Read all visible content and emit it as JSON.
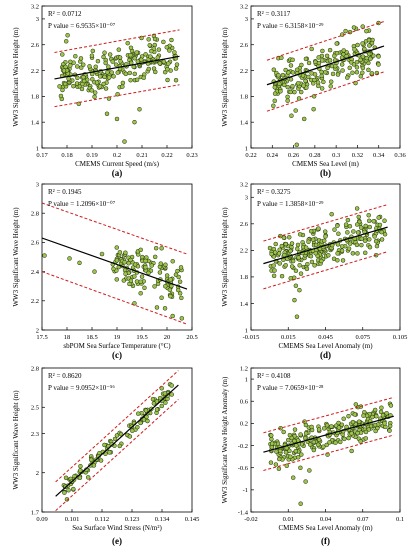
{
  "chart_data": [
    {
      "type": "scatter",
      "panel_label": "(a)",
      "xlabel": "CMEMS Current Speed (m/s)",
      "ylabel": "WW3 Significant Wave Height (m)",
      "xlim": [
        0.17,
        0.23
      ],
      "ylim": [
        1.0,
        3.2
      ],
      "x_ticks": [
        "0.17",
        "0.18",
        "0.19",
        "0.2",
        "0.21",
        "0.22",
        "0.23"
      ],
      "y_ticks": [
        "1",
        "1.4",
        "1.8",
        "2.2",
        "2.6",
        "3",
        "3.2"
      ],
      "x_tick_values": [
        0.17,
        0.18,
        0.19,
        0.2,
        0.21,
        0.22,
        0.23
      ],
      "y_tick_values": [
        1.0,
        1.4,
        1.8,
        2.2,
        2.6,
        3.0,
        3.2
      ],
      "r2_text": "R² = 0.0712",
      "p_text": "P value = 6.9535×10⁻⁰⁷",
      "fit": {
        "x": [
          0.175,
          0.225
        ],
        "y": [
          2.07,
          2.42
        ]
      },
      "ci_upper": {
        "x": [
          0.175,
          0.225
        ],
        "y": [
          2.48,
          2.83
        ]
      },
      "ci_lower": {
        "x": [
          0.175,
          0.225
        ],
        "y": [
          1.64,
          1.98
        ]
      },
      "points": {
        "n": 240,
        "x_range": [
          0.177,
          0.224
        ],
        "spread": 0.18,
        "seed": 11,
        "outliers": [
          [
            0.203,
            1.1
          ],
          [
            0.2,
            1.45
          ],
          [
            0.196,
            1.53
          ],
          [
            0.207,
            1.4
          ],
          [
            0.209,
            1.6
          ]
        ]
      }
    },
    {
      "type": "scatter",
      "panel_label": "(b)",
      "xlabel": "CMEMS Sea Level (m)",
      "ylabel": "WW3 Significant Wave Height (m)",
      "xlim": [
        0.22,
        0.36
      ],
      "ylim": [
        1.0,
        3.2
      ],
      "x_ticks": [
        "0.22",
        "0.24",
        "0.26",
        "0.28",
        "0.3",
        "0.32",
        "0.34",
        "0.36"
      ],
      "y_ticks": [
        "1",
        "1.4",
        "1.8",
        "2.2",
        "2.6",
        "3",
        "3.2"
      ],
      "x_tick_values": [
        0.22,
        0.24,
        0.26,
        0.28,
        0.3,
        0.32,
        0.34,
        0.36
      ],
      "y_tick_values": [
        1.0,
        1.4,
        1.8,
        2.2,
        2.6,
        3.0,
        3.2
      ],
      "r2_text": "R² = 0.3117",
      "p_text": "P value = 6.3158×10⁻²⁹",
      "fit": {
        "x": [
          0.235,
          0.345
        ],
        "y": [
          1.98,
          2.58
        ]
      },
      "ci_upper": {
        "x": [
          0.235,
          0.345
        ],
        "y": [
          2.36,
          2.96
        ]
      },
      "ci_lower": {
        "x": [
          0.235,
          0.345
        ],
        "y": [
          1.57,
          2.18
        ]
      },
      "points": {
        "n": 230,
        "x_range": [
          0.24,
          0.34
        ],
        "spread": 0.17,
        "seed": 23,
        "outliers": [
          [
            0.263,
            1.05
          ],
          [
            0.258,
            1.5
          ],
          [
            0.27,
            1.45
          ],
          [
            0.262,
            1.58
          ]
        ]
      }
    },
    {
      "type": "scatter",
      "panel_label": "(c)",
      "xlabel": "sbPOM Sea Surface Temperature (°C)",
      "ylabel": "WW3 Significant Wave Height (m)",
      "xlim": [
        17.5,
        20.5
      ],
      "ylim": [
        2.0,
        3.0
      ],
      "x_ticks": [
        "17.5",
        "18",
        "18.5",
        "19",
        "19.5",
        "20",
        "20.5"
      ],
      "y_ticks": [
        "2",
        "2.2",
        "2.4",
        "2.6",
        "2.8",
        "3"
      ],
      "x_tick_values": [
        17.5,
        18,
        18.5,
        19,
        19.5,
        20,
        20.5
      ],
      "y_tick_values": [
        2.0,
        2.2,
        2.4,
        2.6,
        2.8,
        3.0
      ],
      "r2_text": "R² = 0.1945",
      "p_text": "P value = 1.2096×10⁻⁰⁷",
      "fit": {
        "x": [
          17.5,
          20.4
        ],
        "y": [
          2.63,
          2.28
        ]
      },
      "ci_upper": {
        "x": [
          17.5,
          20.4
        ],
        "y": [
          2.87,
          2.52
        ]
      },
      "ci_lower": {
        "x": [
          17.5,
          20.4
        ],
        "y": [
          2.4,
          2.04
        ]
      },
      "points": {
        "n": 130,
        "x_range": [
          18.9,
          20.3
        ],
        "spread": 0.09,
        "seed": 37,
        "outliers": [
          [
            17.55,
            2.51
          ],
          [
            18.05,
            2.49
          ],
          [
            18.25,
            2.46
          ],
          [
            18.55,
            2.4
          ],
          [
            18.7,
            2.52
          ]
        ]
      }
    },
    {
      "type": "scatter",
      "panel_label": "(d)",
      "xlabel": "CMEMS Sea Level Anomaly (m)",
      "ylabel": "WW3 Significant Wave Height (m)",
      "xlim": [
        -0.015,
        0.105
      ],
      "ylim": [
        1.0,
        3.2
      ],
      "x_ticks": [
        "-0.015",
        "0.015",
        "0.045",
        "0.075",
        "0.105"
      ],
      "y_ticks": [
        "1",
        "1.4",
        "1.8",
        "2.2",
        "2.6",
        "3",
        "3.2"
      ],
      "x_tick_values": [
        -0.015,
        0.015,
        0.045,
        0.075,
        0.105
      ],
      "y_tick_values": [
        1.0,
        1.4,
        1.8,
        2.2,
        2.6,
        3.0,
        3.2
      ],
      "r2_text": "R² = 0.3275",
      "p_text": "P value = 1.3858×10⁻²⁹",
      "fit": {
        "x": [
          -0.005,
          0.095
        ],
        "y": [
          2.0,
          2.55
        ]
      },
      "ci_upper": {
        "x": [
          -0.005,
          0.095
        ],
        "y": [
          2.34,
          2.89
        ]
      },
      "ci_lower": {
        "x": [
          -0.005,
          0.095
        ],
        "y": [
          1.62,
          2.18
        ]
      },
      "points": {
        "n": 250,
        "x_range": [
          0.0,
          0.093
        ],
        "spread": 0.15,
        "seed": 51,
        "outliers": [
          [
            0.022,
            1.2
          ],
          [
            0.02,
            1.45
          ],
          [
            0.024,
            1.6
          ],
          [
            0.017,
            1.78
          ]
        ]
      }
    },
    {
      "type": "scatter",
      "panel_label": "(e)",
      "xlabel": "Sea Surface Wind Stress (N/m²)",
      "ylabel": "WW3 Significant Wave Height (m)",
      "xlim": [
        0.09,
        0.145
      ],
      "ylim": [
        1.7,
        2.8
      ],
      "x_ticks": [
        "0.09",
        "0.101",
        "0.112",
        "0.123",
        "0.134",
        "0.145"
      ],
      "y_ticks": [
        "1.7",
        "2",
        "2.3",
        "2.5",
        "2.8"
      ],
      "x_tick_values": [
        0.09,
        0.101,
        0.112,
        0.123,
        0.134,
        0.145
      ],
      "y_tick_values": [
        1.7,
        2.0,
        2.3,
        2.5,
        2.8
      ],
      "r2_text": "R² = 0.8620",
      "p_text": "P value = 9.0952×10⁻⁵⁶",
      "fit": {
        "x": [
          0.095,
          0.14
        ],
        "y": [
          1.82,
          2.67
        ]
      },
      "ci_upper": {
        "x": [
          0.095,
          0.14
        ],
        "y": [
          1.93,
          2.78
        ]
      },
      "ci_lower": {
        "x": [
          0.095,
          0.14
        ],
        "y": [
          1.71,
          2.56
        ]
      },
      "points": {
        "n": 120,
        "x_range": [
          0.098,
          0.138
        ],
        "spread": 0.035,
        "seed": 67,
        "outliers": []
      }
    },
    {
      "type": "scatter",
      "panel_label": "(f)",
      "xlabel": "CMEMS Sea Level Anomaly (m)",
      "ylabel": "WW3 Significant Wave Height Anomaly (m)",
      "xlim": [
        -0.02,
        0.1
      ],
      "ylim": [
        -1.4,
        1.2
      ],
      "x_ticks": [
        "-0.02",
        "0.01",
        "0.04",
        "0.07",
        "0.1"
      ],
      "y_ticks": [
        "-1.4",
        "-1",
        "-0.6",
        "-0.2",
        "0.2",
        "0.6",
        "1",
        "1.2"
      ],
      "x_tick_values": [
        -0.02,
        0.01,
        0.04,
        0.07,
        0.1
      ],
      "y_tick_values": [
        -1.4,
        -1.0,
        -0.6,
        -0.2,
        0.2,
        0.6,
        1.0,
        1.2
      ],
      "r2_text": "R² = 0.4108",
      "p_text": "P value = 7.0659×10⁻²⁸",
      "fit": {
        "x": [
          -0.01,
          0.095
        ],
        "y": [
          -0.32,
          0.33
        ]
      },
      "ci_upper": {
        "x": [
          -0.01,
          0.095
        ],
        "y": [
          0.03,
          0.67
        ]
      },
      "ci_lower": {
        "x": [
          -0.01,
          0.095
        ],
        "y": [
          -0.65,
          -0.01
        ]
      },
      "points": {
        "n": 260,
        "x_range": [
          -0.005,
          0.093
        ],
        "spread": 0.14,
        "seed": 83,
        "outliers": [
          [
            0.02,
            -1.25
          ],
          [
            0.024,
            -0.85
          ],
          [
            0.014,
            -0.78
          ],
          [
            0.027,
            -0.65
          ]
        ]
      }
    }
  ]
}
